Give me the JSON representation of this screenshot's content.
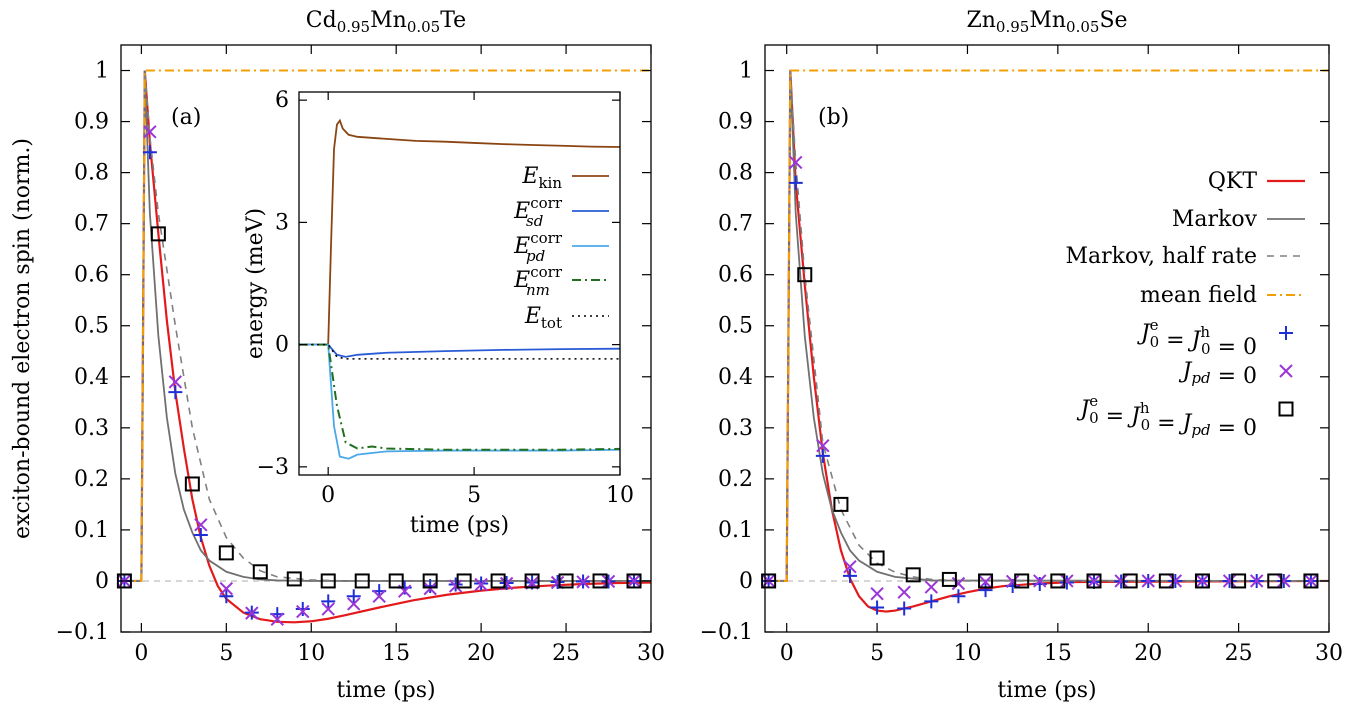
{
  "chart_data": [
    {
      "type": "line",
      "title": "Cd0.95Mn0.05Te",
      "title_parts": {
        "base1": "Cd",
        "sub1": "0.95",
        "base2": "Mn",
        "sub2": "0.05",
        "base3": "Te"
      },
      "panel_label": "(a)",
      "xlabel": "time (ps)",
      "ylabel": "exciton-bound electron spin (norm.)",
      "xlim": [
        -1.2,
        30
      ],
      "ylim": [
        -0.1,
        1.05
      ],
      "xticks": [
        0,
        5,
        10,
        15,
        20,
        25,
        30
      ],
      "yticks": [
        -0.1,
        0,
        0.1,
        0.2,
        0.3,
        0.4,
        0.5,
        0.6,
        0.7,
        0.8,
        0.9,
        1
      ],
      "ytick_labels": [
        "−0.1",
        "0",
        "0.1",
        "0.2",
        "0.3",
        "0.4",
        "0.5",
        "0.6",
        "0.7",
        "0.8",
        "0.9",
        "1"
      ],
      "grid": false,
      "series": [
        {
          "name": "QKT",
          "style": "line",
          "color": "#e31a1c",
          "x": [
            -1.2,
            0,
            0.2,
            0.5,
            1,
            1.5,
            2,
            2.5,
            3,
            3.5,
            4,
            4.5,
            5,
            6,
            7,
            8,
            9,
            10,
            11,
            12,
            14,
            16,
            18,
            20,
            22,
            24,
            26,
            28,
            30
          ],
          "y": [
            0,
            0,
            1,
            0.86,
            0.68,
            0.51,
            0.37,
            0.26,
            0.16,
            0.085,
            0.03,
            -0.01,
            -0.035,
            -0.062,
            -0.075,
            -0.08,
            -0.081,
            -0.079,
            -0.074,
            -0.067,
            -0.052,
            -0.038,
            -0.027,
            -0.019,
            -0.013,
            -0.009,
            -0.006,
            -0.004,
            -0.003
          ]
        },
        {
          "name": "Markov",
          "style": "line",
          "color": "#707070",
          "x": [
            -1.2,
            0,
            0.2,
            0.5,
            1,
            1.5,
            2,
            2.5,
            3,
            3.5,
            4,
            5,
            6,
            7,
            8,
            10,
            30
          ],
          "y": [
            0,
            0,
            1,
            0.72,
            0.48,
            0.32,
            0.21,
            0.14,
            0.095,
            0.06,
            0.04,
            0.018,
            0.008,
            0.003,
            0.001,
            0,
            0
          ]
        },
        {
          "name": "Markov, half rate",
          "style": "dashed",
          "color": "#808080",
          "x": [
            -1.2,
            0,
            0.2,
            0.5,
            1,
            2,
            3,
            4,
            5,
            6,
            7,
            8,
            10,
            12,
            30
          ],
          "y": [
            0,
            0,
            1,
            0.87,
            0.72,
            0.5,
            0.3,
            0.16,
            0.085,
            0.045,
            0.02,
            0.008,
            0.002,
            0,
            0
          ]
        },
        {
          "name": "mean field",
          "style": "dashdot",
          "color": "#f0a000",
          "x": [
            -1.2,
            0,
            0.2,
            30
          ],
          "y": [
            0,
            0,
            1,
            1
          ]
        },
        {
          "name": "J0e = J0h = 0",
          "style": "plus",
          "color": "#1f2fd8",
          "x": [
            -1,
            0.5,
            2,
            3.5,
            5,
            6.5,
            8,
            9.5,
            11,
            12.5,
            14,
            15.5,
            17,
            18.5,
            20,
            21.5,
            23,
            24.5,
            26,
            27.5,
            29
          ],
          "y": [
            0,
            0.84,
            0.37,
            0.09,
            -0.03,
            -0.062,
            -0.065,
            -0.055,
            -0.04,
            -0.03,
            -0.02,
            -0.013,
            -0.01,
            -0.007,
            -0.005,
            -0.004,
            -0.003,
            -0.002,
            -0.001,
            -0.001,
            0
          ]
        },
        {
          "name": "Jpd = 0",
          "style": "cross",
          "color": "#9a35d8",
          "x": [
            -1,
            0.5,
            2,
            3.5,
            5,
            6.5,
            8,
            9.5,
            11,
            12.5,
            14,
            15.5,
            17,
            18.5,
            20,
            21.5,
            23,
            24.5,
            26,
            27.5,
            29
          ],
          "y": [
            0,
            0.88,
            0.39,
            0.11,
            -0.015,
            -0.063,
            -0.075,
            -0.06,
            -0.055,
            -0.045,
            -0.03,
            -0.02,
            -0.015,
            -0.01,
            -0.007,
            -0.005,
            -0.004,
            -0.003,
            -0.002,
            -0.001,
            0
          ]
        },
        {
          "name": "J0e = J0h = Jpd = 0",
          "style": "square",
          "color": "#000000",
          "x": [
            -1,
            1,
            3,
            5,
            7,
            9,
            11,
            13,
            15,
            17,
            19,
            21,
            23,
            25,
            27,
            29
          ],
          "y": [
            0,
            0.68,
            0.19,
            0.055,
            0.018,
            0.004,
            0,
            0,
            0,
            0,
            0,
            0,
            0,
            0,
            0,
            0
          ]
        }
      ],
      "inset": {
        "type": "line",
        "xlabel": "time (ps)",
        "ylabel": "energy (meV)",
        "xlim": [
          -1,
          10
        ],
        "ylim": [
          -3.2,
          6.2
        ],
        "xticks": [
          0,
          5,
          10
        ],
        "yticks": [
          -3,
          0,
          3,
          6
        ],
        "ytick_labels": [
          "−3",
          "0",
          "3",
          "6"
        ],
        "series": [
          {
            "name": "E_kin",
            "style": "line",
            "color": "#8b4513",
            "x": [
              -1,
              0,
              0.1,
              0.2,
              0.3,
              0.4,
              0.5,
              0.7,
              1,
              2,
              3,
              4,
              5,
              6,
              7,
              8,
              9,
              10
            ],
            "y": [
              0,
              0,
              2.5,
              4.8,
              5.4,
              5.5,
              5.3,
              5.15,
              5.1,
              5.05,
              5.0,
              4.98,
              4.95,
              4.92,
              4.9,
              4.88,
              4.86,
              4.85
            ]
          },
          {
            "name": "E_sd corr",
            "style": "line",
            "color": "#2a5bd7",
            "x": [
              -1,
              0,
              0.3,
              0.6,
              1,
              2,
              4,
              6,
              8,
              10
            ],
            "y": [
              0,
              0,
              -0.25,
              -0.3,
              -0.25,
              -0.2,
              -0.16,
              -0.13,
              -0.11,
              -0.1
            ]
          },
          {
            "name": "E_pd corr",
            "style": "line",
            "color": "#4aa8e8",
            "x": [
              -1,
              0,
              0.2,
              0.4,
              0.7,
              1,
              2,
              4,
              6,
              8,
              10
            ],
            "y": [
              0,
              0,
              -2.0,
              -2.75,
              -2.8,
              -2.7,
              -2.62,
              -2.6,
              -2.6,
              -2.6,
              -2.58
            ]
          },
          {
            "name": "E_nm corr",
            "style": "dashdot",
            "color": "#207020",
            "x": [
              -1,
              0,
              0.3,
              0.6,
              1,
              1.5,
              2,
              4,
              6,
              8,
              10
            ],
            "y": [
              0,
              0,
              -1.5,
              -2.4,
              -2.55,
              -2.5,
              -2.55,
              -2.58,
              -2.58,
              -2.58,
              -2.56
            ]
          },
          {
            "name": "E_tot",
            "style": "dotted",
            "color": "#000000",
            "x": [
              -1,
              0,
              0.3,
              0.6,
              10
            ],
            "y": [
              0,
              0,
              -0.3,
              -0.35,
              -0.35
            ]
          }
        ],
        "legend": [
          {
            "base": "E",
            "sub": "kin",
            "sup": ""
          },
          {
            "base": "E",
            "sub": "sd",
            "sup": "corr"
          },
          {
            "base": "E",
            "sub": "pd",
            "sup": "corr"
          },
          {
            "base": "E",
            "sub": "nm",
            "sup": "corr"
          },
          {
            "base": "E",
            "sub": "tot",
            "sup": ""
          }
        ]
      }
    },
    {
      "type": "line",
      "title": "Zn0.95Mn0.05Se",
      "title_parts": {
        "base1": "Zn",
        "sub1": "0.95",
        "base2": "Mn",
        "sub2": "0.05",
        "base3": "Se"
      },
      "panel_label": "(b)",
      "xlabel": "time (ps)",
      "xlim": [
        -1.2,
        30
      ],
      "ylim": [
        -0.1,
        1.05
      ],
      "xticks": [
        0,
        5,
        10,
        15,
        20,
        25,
        30
      ],
      "yticks": [
        -0.1,
        0,
        0.1,
        0.2,
        0.3,
        0.4,
        0.5,
        0.6,
        0.7,
        0.8,
        0.9,
        1
      ],
      "ytick_labels": [
        "−0.1",
        "0",
        "0.1",
        "0.2",
        "0.3",
        "0.4",
        "0.5",
        "0.6",
        "0.7",
        "0.8",
        "0.9",
        "1"
      ],
      "grid": false,
      "legend_position": "right",
      "series": [
        {
          "name": "QKT",
          "style": "line",
          "color": "#e31a1c",
          "x": [
            -1.2,
            0,
            0.2,
            0.5,
            1,
            1.5,
            2,
            2.5,
            3,
            3.5,
            4,
            4.5,
            5,
            5.5,
            6,
            7,
            8,
            9,
            10,
            11,
            12,
            14,
            16,
            30
          ],
          "y": [
            0,
            0,
            1,
            0.78,
            0.58,
            0.4,
            0.25,
            0.14,
            0.06,
            0.005,
            -0.03,
            -0.05,
            -0.058,
            -0.06,
            -0.058,
            -0.05,
            -0.04,
            -0.03,
            -0.022,
            -0.015,
            -0.01,
            -0.005,
            -0.002,
            0
          ]
        },
        {
          "name": "Markov",
          "style": "line",
          "color": "#707070",
          "x": [
            -1.2,
            0,
            0.2,
            0.5,
            1,
            1.5,
            2,
            2.5,
            3,
            3.5,
            4,
            5,
            6,
            8,
            30
          ],
          "y": [
            0,
            0,
            1,
            0.72,
            0.48,
            0.32,
            0.21,
            0.14,
            0.095,
            0.06,
            0.04,
            0.018,
            0.008,
            0.001,
            0
          ]
        },
        {
          "name": "Markov, half rate",
          "style": "dashed",
          "color": "#808080",
          "x": [
            -1.2,
            0,
            0.2,
            0.5,
            1,
            2,
            3,
            4,
            5,
            6,
            7,
            8,
            10,
            30
          ],
          "y": [
            0,
            0,
            1,
            0.82,
            0.6,
            0.27,
            0.14,
            0.07,
            0.035,
            0.017,
            0.008,
            0.003,
            0,
            0
          ]
        },
        {
          "name": "mean field",
          "style": "dashdot",
          "color": "#f0a000",
          "x": [
            -1.2,
            0,
            0.2,
            30
          ],
          "y": [
            0,
            0,
            1,
            1
          ]
        },
        {
          "name": "J0e = J0h = 0",
          "style": "plus",
          "color": "#1f2fd8",
          "x": [
            -1,
            0.5,
            2,
            3.5,
            5,
            6.5,
            8,
            9.5,
            11,
            12.5,
            14,
            15.5,
            17,
            18.5,
            20,
            21.5,
            23,
            24.5,
            26,
            27.5,
            29
          ],
          "y": [
            0,
            0.78,
            0.245,
            0.01,
            -0.052,
            -0.054,
            -0.04,
            -0.03,
            -0.018,
            -0.01,
            -0.006,
            -0.003,
            -0.002,
            -0.001,
            0,
            0,
            0,
            0,
            0,
            0,
            0
          ]
        },
        {
          "name": "Jpd = 0",
          "style": "cross",
          "color": "#9a35d8",
          "x": [
            -1,
            0.5,
            2,
            3.5,
            5,
            6.5,
            8,
            9.5,
            11,
            12.5,
            14,
            15.5,
            17,
            18.5,
            20,
            21.5,
            23,
            24.5,
            26,
            27.5,
            29
          ],
          "y": [
            0,
            0.82,
            0.265,
            0.028,
            -0.025,
            -0.022,
            -0.012,
            -0.005,
            -0.002,
            -0.001,
            0,
            0,
            0,
            0,
            0,
            0,
            0,
            0,
            0,
            0,
            0
          ]
        },
        {
          "name": "J0e = J0h = Jpd = 0",
          "style": "square",
          "color": "#000000",
          "x": [
            -1,
            1,
            3,
            5,
            7,
            9,
            11,
            13,
            15,
            17,
            19,
            21,
            23,
            25,
            27,
            29
          ],
          "y": [
            0,
            0.6,
            0.15,
            0.045,
            0.012,
            0.003,
            0,
            0,
            0,
            0,
            0,
            0,
            0,
            0,
            0,
            0
          ]
        }
      ],
      "legend": [
        {
          "kind": "text",
          "text": "QKT"
        },
        {
          "kind": "text",
          "text": "Markov"
        },
        {
          "kind": "text",
          "text": "Markov, half rate"
        },
        {
          "kind": "text",
          "text": "mean field"
        },
        {
          "kind": "math",
          "parts": [
            [
              "J",
              "0",
              "e"
            ],
            "=",
            [
              "J",
              "0",
              "h"
            ],
            "=",
            "0"
          ]
        },
        {
          "kind": "math",
          "parts": [
            [
              "J",
              "pd",
              ""
            ],
            "=",
            "0"
          ]
        },
        {
          "kind": "math",
          "parts": [
            [
              "J",
              "0",
              "e"
            ],
            "=",
            [
              "J",
              "0",
              "h"
            ],
            "=",
            [
              "J",
              "pd",
              ""
            ],
            "=",
            "0"
          ]
        }
      ]
    }
  ]
}
